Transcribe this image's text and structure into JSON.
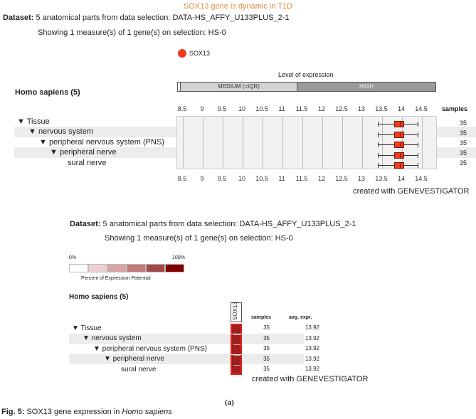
{
  "header": {
    "title": "SOX13 gene is dynamic in T1D",
    "dataset_label": "Dataset:",
    "dataset_text": "5 anatomical parts from data selection: DATA-HS_AFFY_U133PLUS_2-1",
    "showing_text": "Showing 1 measure(s) of 1 gene(s) on selection: HS-0"
  },
  "top_chart": {
    "legend_gene": "SOX13",
    "legend_color": "#f03a1e",
    "level_label": "Level of expression",
    "medium_label": "MEDIUM (=IQR)",
    "high_label": "HIGH",
    "organism": "Homo sapiens (5)",
    "samples_header": "samples",
    "credit": "created with GENEVESTIGATOR"
  },
  "tree": [
    {
      "label": "▼ Tissue",
      "indent": 0
    },
    {
      "label": "▼ nervous system",
      "indent": 1
    },
    {
      "label": "▼ peripheral nervous system (PNS)",
      "indent": 2
    },
    {
      "label": "▼ peripheral nerve",
      "indent": 3
    },
    {
      "label": "sural nerve",
      "indent": 4
    }
  ],
  "chart_data": [
    {
      "type": "boxplot",
      "title": "SOX13 gene is dynamic in T1D",
      "xlabel": "Level of expression",
      "xlim": [
        8.5,
        14.5
      ],
      "xticks": [
        8.5,
        9,
        9.5,
        10,
        10.5,
        11,
        11.5,
        12,
        12.5,
        13,
        13.5,
        14,
        14.5
      ],
      "categories": [
        "Tissue",
        "nervous system",
        "peripheral nervous system (PNS)",
        "peripheral nerve",
        "sural nerve"
      ],
      "series": [
        {
          "name": "SOX13",
          "boxes": [
            {
              "whisker_low": 13.4,
              "q1": 13.8,
              "median": 13.95,
              "q3": 14.05,
              "whisker_high": 14.4
            },
            {
              "whisker_low": 13.4,
              "q1": 13.8,
              "median": 13.95,
              "q3": 14.05,
              "whisker_high": 14.4
            },
            {
              "whisker_low": 13.4,
              "q1": 13.8,
              "median": 13.95,
              "q3": 14.05,
              "whisker_high": 14.4
            },
            {
              "whisker_low": 13.4,
              "q1": 13.8,
              "median": 13.95,
              "q3": 14.05,
              "whisker_high": 14.4
            },
            {
              "whisker_low": 13.4,
              "q1": 13.8,
              "median": 13.95,
              "q3": 14.05,
              "whisker_high": 14.4
            }
          ]
        }
      ],
      "samples": [
        35,
        35,
        35,
        35,
        35
      ],
      "expression_levels": {
        "medium_range": [
          8.5,
          11.45
        ],
        "high_range": [
          11.45,
          14.8
        ]
      }
    },
    {
      "type": "heatmap",
      "legend_title": "Percent of Expression Potential",
      "legend_min": "0%",
      "legend_max": "100%",
      "columns": [
        "SOX13"
      ],
      "rows": [
        "Tissue",
        "nervous system",
        "peripheral nervous system (PNS)",
        "peripheral nerve",
        "sural nerve"
      ],
      "samples": [
        35,
        35,
        35,
        35,
        35
      ],
      "avg_expr": [
        13.92,
        13.92,
        13.92,
        13.92,
        13.92
      ]
    }
  ],
  "bottom_chart": {
    "organism": "Homo sapiens (5)",
    "gene_column": "SOX13",
    "samples_header": "samples",
    "avg_header": "avg. expr.",
    "legend_min": "0%",
    "legend_max": "100%",
    "legend_title": "Percent of Expression Potential",
    "legend_colors": [
      "#ffffff",
      "#ecd2d2",
      "#d9a6a6",
      "#c07878",
      "#a04848",
      "#800000"
    ],
    "rows": [
      {
        "samples": "35",
        "avg": "13.92"
      },
      {
        "samples": "35",
        "avg": "13.92"
      },
      {
        "samples": "35",
        "avg": "13.92"
      },
      {
        "samples": "35",
        "avg": "13.92"
      },
      {
        "samples": "35",
        "avg": "13.92"
      }
    ],
    "credit": "created with GENEVESTIGATOR"
  },
  "caption": {
    "sub": "(a)",
    "fig_label": "Fig. 5:",
    "text_a": " SOX13 gene expression in ",
    "text_italic": "Homo sapiens"
  }
}
